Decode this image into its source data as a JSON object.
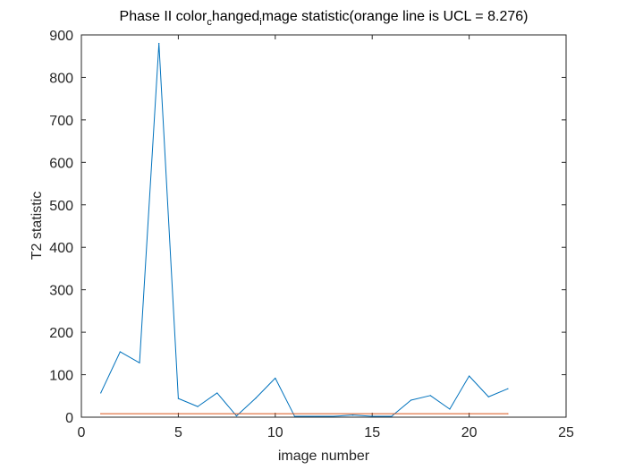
{
  "chart_data": {
    "type": "line",
    "title": {
      "prefix": "Phase II color",
      "sub1": "c",
      "mid": "hanged",
      "sub2": "i",
      "suffix": "mage statistic(orange line is UCL = 8.276)"
    },
    "xlabel": "image number",
    "ylabel": "T2 statistic",
    "xlim": [
      0,
      25
    ],
    "ylim": [
      0,
      900
    ],
    "xticks": [
      0,
      5,
      10,
      15,
      20,
      25
    ],
    "yticks": [
      0,
      100,
      200,
      300,
      400,
      500,
      600,
      700,
      800,
      900
    ],
    "grid": false,
    "box": true,
    "series": [
      {
        "color": "#0072BD",
        "x": [
          1,
          2,
          3,
          4,
          5,
          6,
          7,
          8,
          9,
          10,
          11,
          12,
          13,
          14,
          15,
          16,
          17,
          18,
          19,
          20,
          21,
          22
        ],
        "values": [
          57,
          154,
          128,
          880,
          44,
          25,
          57,
          3,
          45,
          92,
          2,
          2,
          2,
          5,
          2,
          2,
          40,
          51,
          19,
          97,
          48,
          67
        ]
      },
      {
        "color": "#D95319",
        "x": [
          1,
          22
        ],
        "values": [
          8.276,
          8.276
        ]
      }
    ]
  }
}
